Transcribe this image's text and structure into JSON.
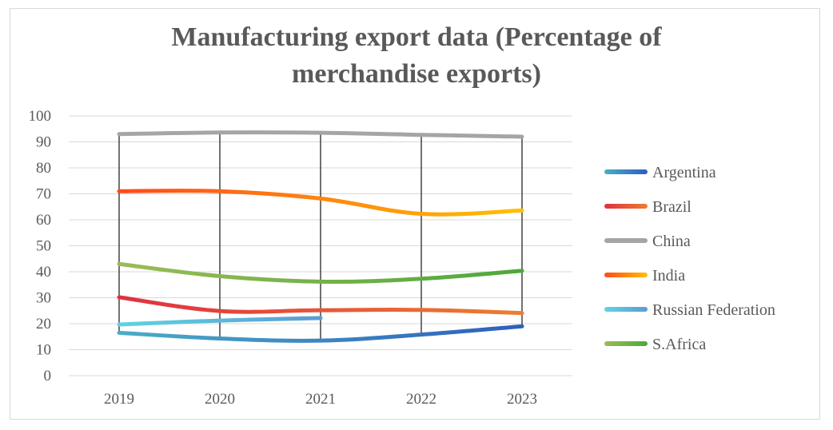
{
  "chart_data": {
    "type": "line",
    "title_lines": [
      "Manufacturing export data (Percentage of",
      "merchandise exports)"
    ],
    "categories": [
      "2019",
      "2020",
      "2021",
      "2022",
      "2023"
    ],
    "ylim": [
      0,
      100
    ],
    "yticks": [
      0,
      10,
      20,
      30,
      40,
      50,
      60,
      70,
      80,
      90,
      100
    ],
    "grid": true,
    "legend_position": "right",
    "drop_lines": true,
    "series": [
      {
        "name": "Argentina",
        "values": [
          16.5,
          14.3,
          13.5,
          15.8,
          19.0
        ],
        "colors": [
          "#4bacc6",
          "#2e5fbd"
        ]
      },
      {
        "name": "Brazil",
        "values": [
          30.2,
          24.9,
          25.2,
          25.3,
          24.1
        ],
        "colors": [
          "#e03040",
          "#ed7d31"
        ]
      },
      {
        "name": "China",
        "values": [
          93.0,
          93.6,
          93.5,
          92.7,
          92.0
        ],
        "colors": [
          "#a5a5a5",
          "#a5a5a5"
        ]
      },
      {
        "name": "India",
        "values": [
          71.0,
          71.0,
          68.2,
          62.3,
          63.6
        ],
        "colors": [
          "#ff4a1c",
          "#ffc000"
        ]
      },
      {
        "name": "Russian Federation",
        "values": [
          19.7,
          21.2,
          22.2,
          null,
          null
        ],
        "colors": [
          "#5fd4e0",
          "#5b9bd5"
        ]
      },
      {
        "name": "S.Africa",
        "values": [
          43.0,
          38.3,
          36.2,
          37.3,
          40.4
        ],
        "colors": [
          "#9bbb59",
          "#4ea83a"
        ]
      }
    ]
  }
}
